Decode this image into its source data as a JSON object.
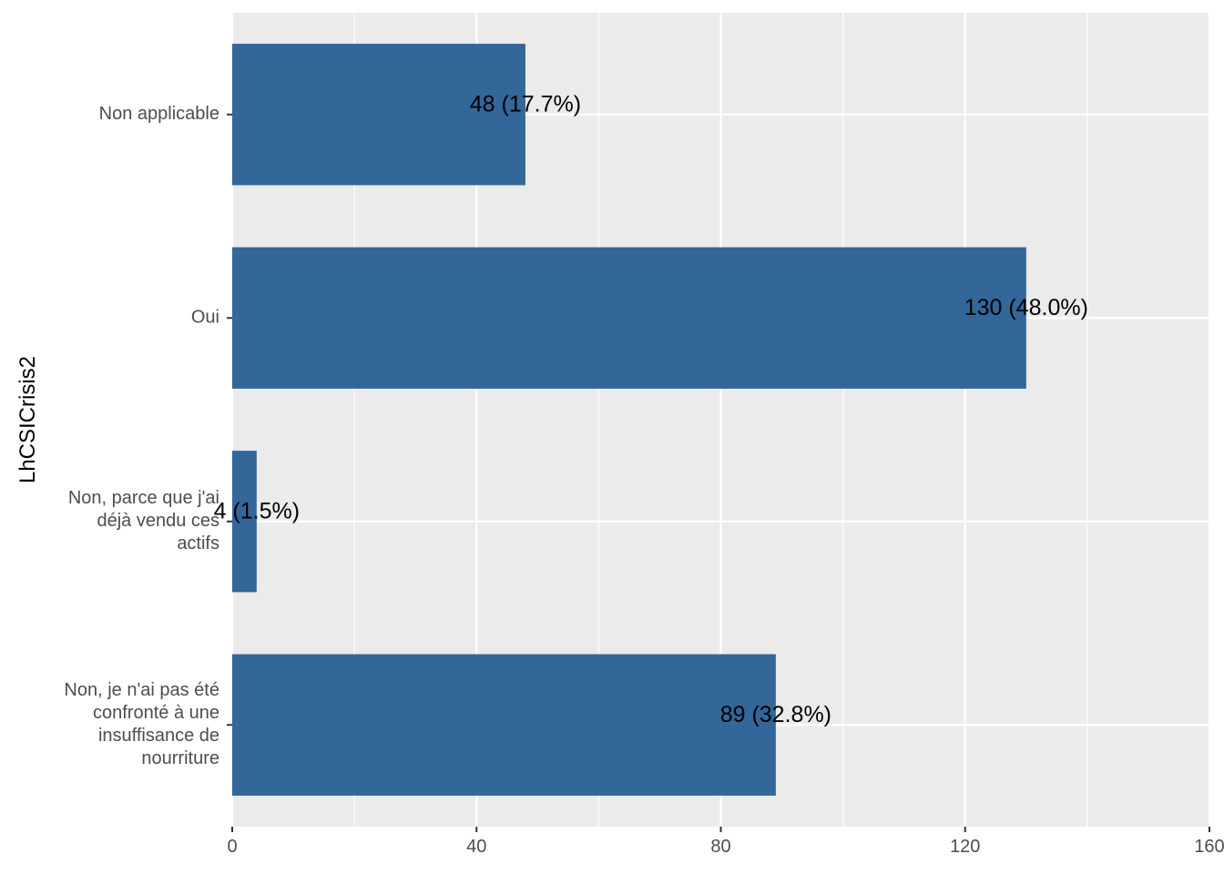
{
  "chart_data": {
    "type": "bar",
    "orientation": "horizontal",
    "title": "",
    "xlabel": "",
    "ylabel": "LhCSICrisis2",
    "categories": [
      "Non applicable",
      "Oui",
      "Non, parce que j'ai déjà vendu ces actifs",
      "Non, je n'ai pas été confronté à une insuffisance de nourriture"
    ],
    "category_label_lines": [
      [
        "Non applicable"
      ],
      [
        "Oui"
      ],
      [
        "Non, parce que j'ai",
        "déjà vendu ces",
        "actifs"
      ],
      [
        "Non, je n'ai pas été",
        "confronté à une",
        "insuffisance de",
        "nourriture"
      ]
    ],
    "values": [
      48,
      130,
      4,
      89
    ],
    "data_labels": [
      "48 (17.7%)",
      "130 (48.0%)",
      "4 (1.5%)",
      "89 (32.8%)"
    ],
    "xlim": [
      0,
      160
    ],
    "xticks": [
      0,
      40,
      80,
      120,
      160
    ],
    "xtick_labels": [
      "0",
      "40",
      "80",
      "120",
      "160"
    ],
    "grid": true,
    "legend": "none",
    "colors": {
      "bar": "#336699",
      "panel_background": "#ebebeb",
      "grid": "#ffffff",
      "tick_text": "#4d4d4d",
      "label_text": "#000000"
    }
  }
}
